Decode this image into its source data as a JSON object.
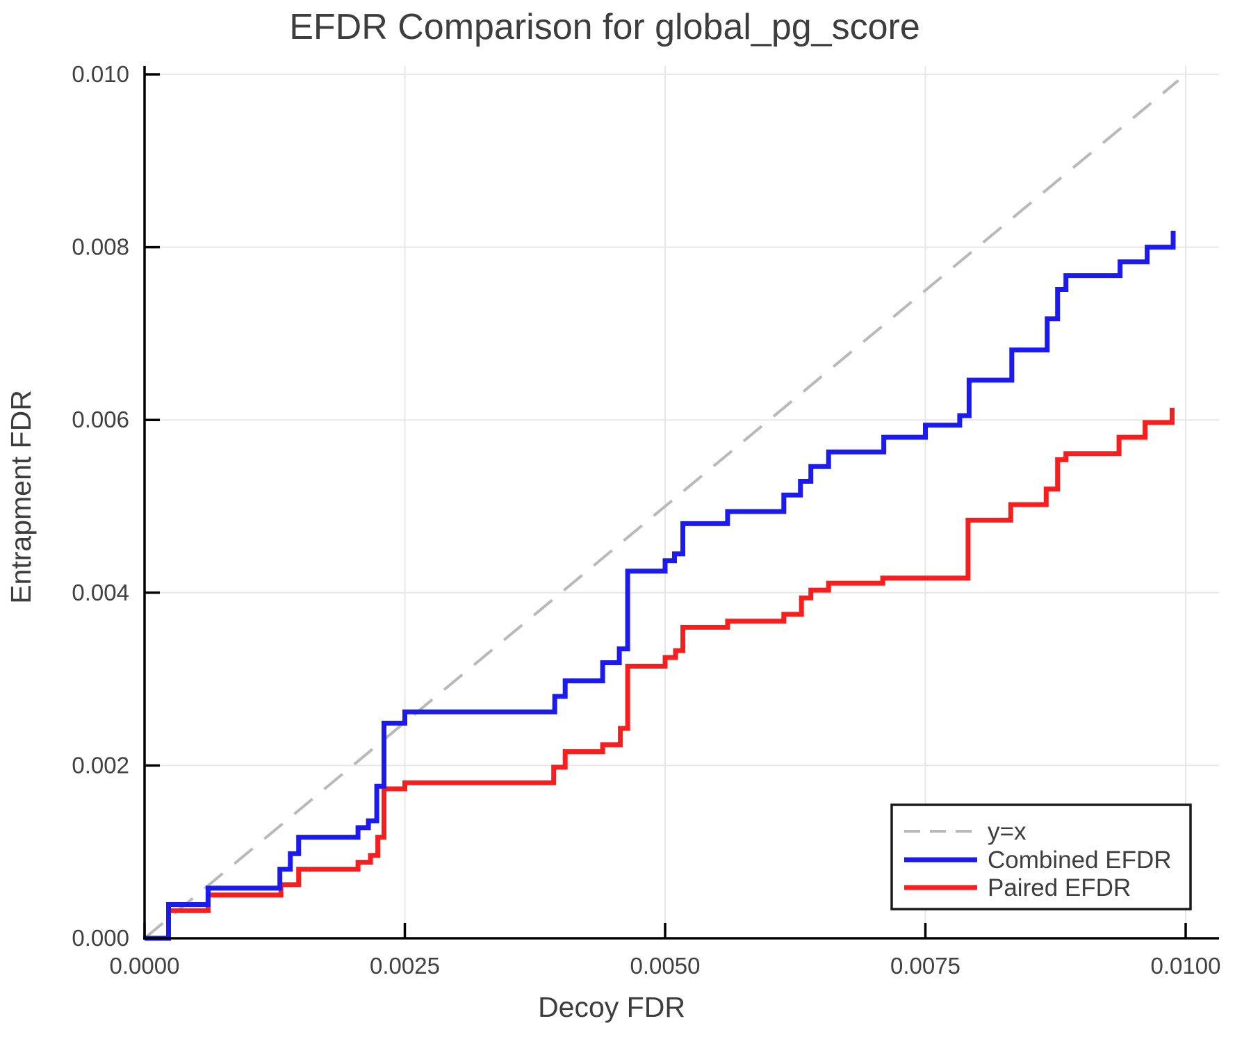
{
  "colors": {
    "background": "#ffffff",
    "grid": "#e7e7e7",
    "spine": "#000000",
    "text": "#3d3d3d",
    "identity": "#b9b9b9",
    "combined": "#1b1bef",
    "paired": "#f81e1e",
    "legend_border": "#1a1a1a",
    "legend_fill": "#ffffff"
  },
  "chart_data": {
    "type": "line",
    "title": "EFDR Comparison for global_pg_score",
    "xlabel": "Decoy FDR",
    "ylabel": "Entrapment FDR",
    "xlim": [
      0,
      0.0103
    ],
    "ylim": [
      0,
      0.01
    ],
    "grid": true,
    "x_ticks": [
      {
        "v": 0.0,
        "label": "0.0000"
      },
      {
        "v": 0.0025,
        "label": "0.0025"
      },
      {
        "v": 0.005,
        "label": "0.0050"
      },
      {
        "v": 0.0075,
        "label": "0.0075"
      },
      {
        "v": 0.01,
        "label": "0.0100"
      }
    ],
    "y_ticks": [
      {
        "v": 0.0,
        "label": "0.000"
      },
      {
        "v": 0.002,
        "label": "0.002"
      },
      {
        "v": 0.004,
        "label": "0.004"
      },
      {
        "v": 0.006,
        "label": "0.006"
      },
      {
        "v": 0.008,
        "label": "0.008"
      },
      {
        "v": 0.01,
        "label": "0.010"
      }
    ],
    "legend": {
      "position": "lower right"
    },
    "series": [
      {
        "name": "y=x",
        "type": "identity-reference",
        "style": "dashed",
        "color": "#b9b9b9",
        "points": [
          [
            0.0,
            0.0
          ],
          [
            0.00993,
            0.00993
          ]
        ]
      },
      {
        "name": "Combined EFDR",
        "type": "step-post",
        "style": "solid",
        "color": "#1b1bef",
        "points": [
          [
            0.0,
            0.0
          ],
          [
            0.00023,
            0.00039
          ],
          [
            0.00061,
            0.00058
          ],
          [
            0.0013,
            0.0008
          ],
          [
            0.0014,
            0.00098
          ],
          [
            0.00148,
            0.00117
          ],
          [
            0.00205,
            0.00128
          ],
          [
            0.00215,
            0.00136
          ],
          [
            0.00223,
            0.00176
          ],
          [
            0.0023,
            0.00249
          ],
          [
            0.0025,
            0.00262
          ],
          [
            0.00394,
            0.0028
          ],
          [
            0.00404,
            0.00298
          ],
          [
            0.0044,
            0.00319
          ],
          [
            0.00456,
            0.00335
          ],
          [
            0.00464,
            0.00425
          ],
          [
            0.005,
            0.00437
          ],
          [
            0.00509,
            0.00445
          ],
          [
            0.00517,
            0.0048
          ],
          [
            0.0056,
            0.00494
          ],
          [
            0.00614,
            0.00513
          ],
          [
            0.0063,
            0.00529
          ],
          [
            0.0064,
            0.00546
          ],
          [
            0.00657,
            0.00563
          ],
          [
            0.0071,
            0.0058
          ],
          [
            0.0075,
            0.00594
          ],
          [
            0.00783,
            0.00605
          ],
          [
            0.00792,
            0.00646
          ],
          [
            0.00833,
            0.00681
          ],
          [
            0.00867,
            0.00717
          ],
          [
            0.00877,
            0.00751
          ],
          [
            0.00885,
            0.00767
          ],
          [
            0.00937,
            0.00783
          ],
          [
            0.00963,
            0.008
          ],
          [
            0.00988,
            0.00819
          ]
        ]
      },
      {
        "name": "Paired EFDR",
        "type": "step-post",
        "style": "solid",
        "color": "#f81e1e",
        "points": [
          [
            0.0,
            0.0
          ],
          [
            0.00023,
            0.00032
          ],
          [
            0.00061,
            0.0005
          ],
          [
            0.00131,
            0.00062
          ],
          [
            0.00148,
            0.0008
          ],
          [
            0.00205,
            0.00088
          ],
          [
            0.00217,
            0.00096
          ],
          [
            0.00224,
            0.00117
          ],
          [
            0.0023,
            0.00173
          ],
          [
            0.0025,
            0.0018
          ],
          [
            0.00393,
            0.00198
          ],
          [
            0.00404,
            0.00216
          ],
          [
            0.0044,
            0.00224
          ],
          [
            0.00457,
            0.00243
          ],
          [
            0.00464,
            0.00315
          ],
          [
            0.005,
            0.00325
          ],
          [
            0.0051,
            0.00333
          ],
          [
            0.00517,
            0.0036
          ],
          [
            0.0056,
            0.00367
          ],
          [
            0.00614,
            0.00375
          ],
          [
            0.00631,
            0.00394
          ],
          [
            0.0064,
            0.00403
          ],
          [
            0.00657,
            0.00411
          ],
          [
            0.00709,
            0.00417
          ],
          [
            0.00791,
            0.00484
          ],
          [
            0.00832,
            0.00502
          ],
          [
            0.00866,
            0.0052
          ],
          [
            0.00877,
            0.00554
          ],
          [
            0.00885,
            0.00561
          ],
          [
            0.00936,
            0.0058
          ],
          [
            0.00961,
            0.00597
          ],
          [
            0.00987,
            0.00614
          ]
        ]
      }
    ]
  }
}
